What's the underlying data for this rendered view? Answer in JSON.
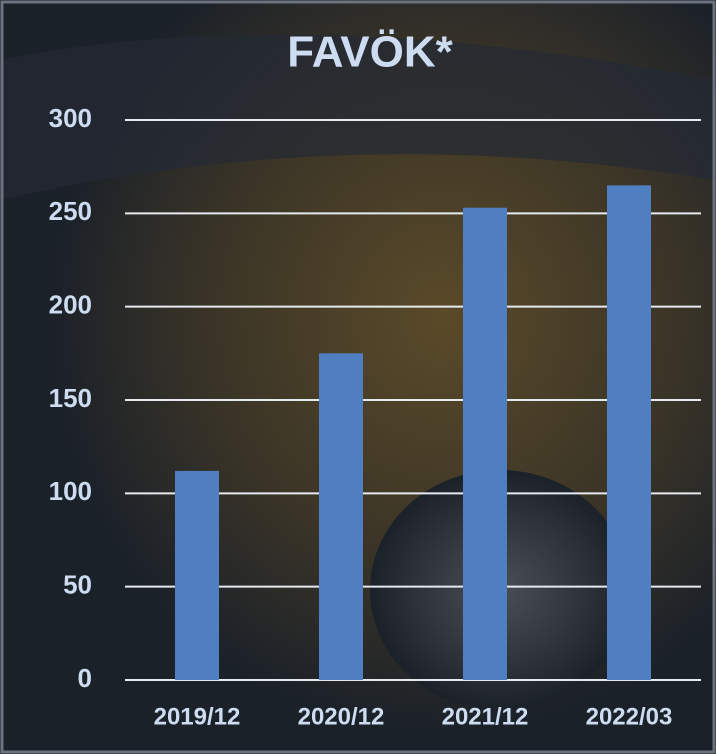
{
  "chart_data": {
    "type": "bar",
    "title": "FAVÖK*",
    "categories": [
      "2019/12",
      "2020/12",
      "2021/12",
      "2022/03"
    ],
    "values": [
      112,
      175,
      253,
      265
    ],
    "color": "#4f7fc1",
    "ylim": [
      0,
      300
    ],
    "yticks": [
      0,
      50,
      100,
      150,
      200,
      250,
      300
    ],
    "grid": true
  }
}
